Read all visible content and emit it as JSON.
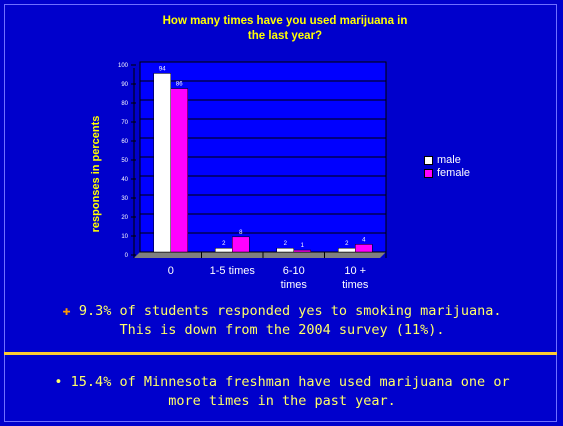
{
  "slide": {
    "bullet1_glyph": "✚",
    "bullet1_line1": "9.3% of students responded yes to smoking marijuana.",
    "bullet1_line2": "This is down from the 2004 survey (11%).",
    "bullet2_line1": "• 15.4% of Minnesota freshman have used marijuana one or",
    "bullet2_line2": "more times in the past year."
  },
  "colors": {
    "background": "#0000cc",
    "plot_area": "#0000ff",
    "text_yellow": "#ffff00",
    "male": "#ffffff",
    "female": "#ff00ff",
    "divider": "#ffcc33"
  },
  "chart_data": {
    "type": "bar",
    "title_line1": "How many times have you used marijuana in",
    "title_line2": "the last year?",
    "xlabel": "",
    "ylabel": "responses in percents",
    "ylim": [
      0,
      100
    ],
    "yticks": [
      0,
      10,
      20,
      30,
      40,
      50,
      60,
      70,
      80,
      90,
      100
    ],
    "categories": [
      {
        "line1": "0",
        "line2": ""
      },
      {
        "line1": "1-5 times",
        "line2": ""
      },
      {
        "line1": "6-10",
        "line2": "times"
      },
      {
        "line1": "10 +",
        "line2": "times"
      }
    ],
    "series": [
      {
        "name": "male",
        "values": [
          94,
          2,
          2,
          2
        ],
        "labels": [
          "94",
          "2",
          "2",
          "2"
        ]
      },
      {
        "name": "female",
        "values": [
          86,
          8,
          1,
          4
        ],
        "labels": [
          "86",
          "8",
          "1",
          "4"
        ]
      }
    ],
    "grid": true,
    "legend_position": "right"
  }
}
